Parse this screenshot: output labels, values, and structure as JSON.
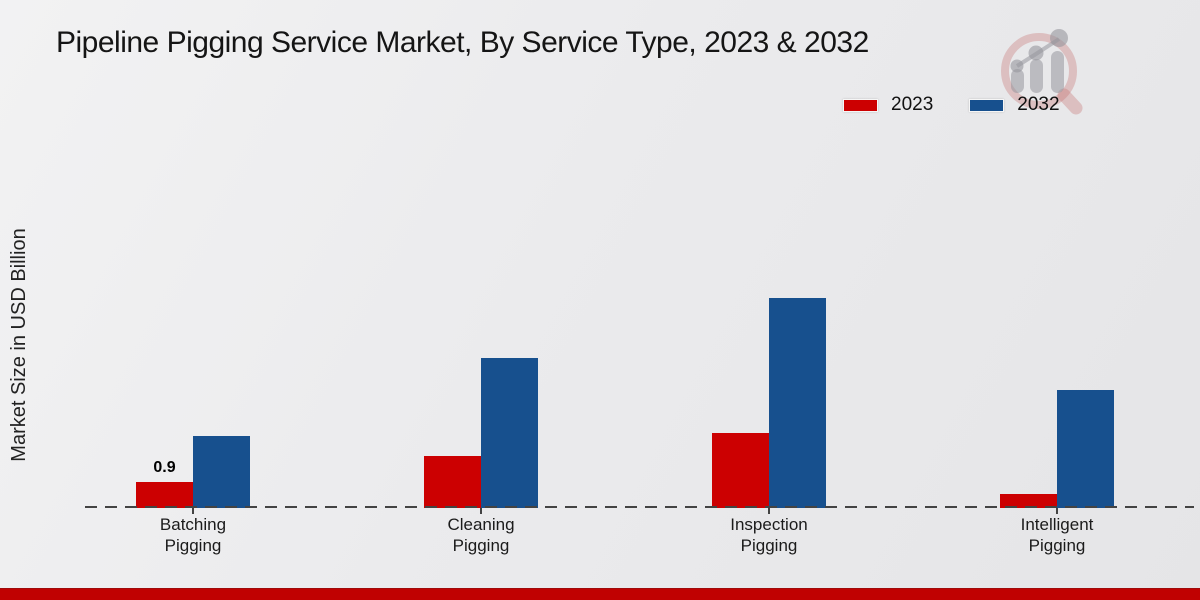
{
  "page": {
    "background_color": "#ebebed",
    "accent_bar_color": "#c00101"
  },
  "header": {
    "title": "Pipeline Pigging Service Market, By Service Type, 2023 & 2032"
  },
  "icons": {
    "logo": "magnifier-bar-chart-watermark"
  },
  "legend": {
    "items": [
      {
        "label": "2023",
        "color": "#cc0001"
      },
      {
        "label": "2032",
        "color": "#17508e"
      }
    ]
  },
  "chart_data": {
    "type": "bar",
    "title": "Pipeline Pigging Service Market, By Service Type, 2023 & 2032",
    "xlabel": "",
    "ylabel": "Market Size in USD Billion",
    "categories": [
      "Batching Pigging",
      "Cleaning Pigging",
      "Inspection Pigging",
      "Intelligent Pigging"
    ],
    "series": [
      {
        "name": "2023",
        "color": "#cc0001",
        "values": [
          0.9,
          1.8,
          2.6,
          0.5
        ]
      },
      {
        "name": "2032",
        "color": "#17508e",
        "values": [
          2.5,
          5.2,
          7.3,
          4.1
        ]
      }
    ],
    "data_labels": [
      {
        "series": "2023",
        "category": "Batching Pigging",
        "text": "0.9"
      }
    ],
    "ylim": [
      0,
      8.5
    ],
    "grid": false,
    "legend_position": "top-right",
    "baseline_style": "dashed"
  }
}
